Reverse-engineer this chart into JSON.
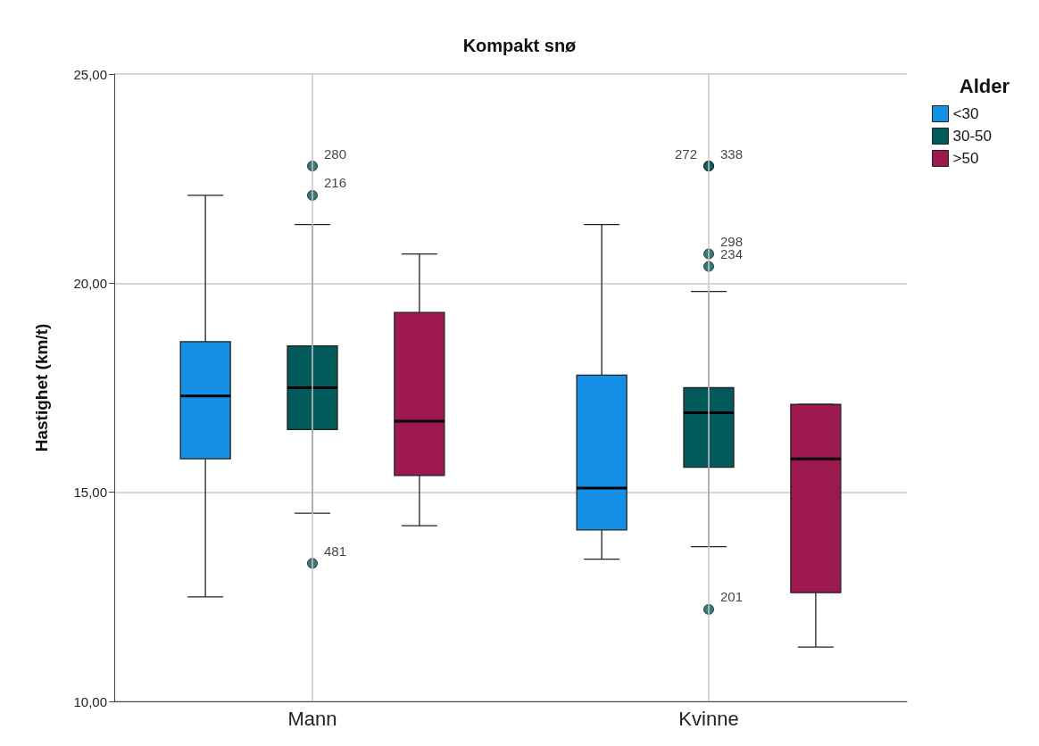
{
  "chart_data": {
    "type": "box",
    "title": "Kompakt snø",
    "ylabel": "Hastighet (km/t)",
    "legend_title": "Alder",
    "categories": [
      "Mann",
      "Kvinne"
    ],
    "series": [
      {
        "name": "<30",
        "color": "#1490e6",
        "boxes": [
          {
            "low": 12.5,
            "q1": 15.8,
            "median": 17.3,
            "q3": 18.6,
            "high": 22.1
          },
          {
            "low": 13.4,
            "q1": 14.1,
            "median": 15.1,
            "q3": 17.8,
            "high": 21.4
          }
        ]
      },
      {
        "name": "30-50",
        "color": "#035a5a",
        "boxes": [
          {
            "low": 14.5,
            "q1": 16.5,
            "median": 17.5,
            "q3": 18.5,
            "high": 21.4,
            "outliers": [
              22.8,
              22.1,
              13.3
            ]
          },
          {
            "low": 13.7,
            "q1": 15.6,
            "median": 16.9,
            "q3": 17.5,
            "high": 19.8,
            "outliers": [
              22.8,
              22.8,
              20.7,
              20.4,
              12.2
            ]
          }
        ]
      },
      {
        "name": ">50",
        "color": "#9c184f",
        "boxes": [
          {
            "low": 14.2,
            "q1": 15.4,
            "median": 16.7,
            "q3": 19.3,
            "high": 20.7
          },
          {
            "low": 11.3,
            "q1": 12.6,
            "median": 15.8,
            "q3": 17.1,
            "high": 17.1
          }
        ]
      }
    ],
    "annotations": [
      "280",
      "216",
      "481",
      "272",
      "338",
      "298",
      "234",
      "201"
    ],
    "ylim": [
      10,
      25
    ],
    "yticks": [
      {
        "value": 10,
        "label": "10,00"
      },
      {
        "value": 15,
        "label": "15,00"
      },
      {
        "value": 20,
        "label": "20,00"
      },
      {
        "value": 25,
        "label": "25,00"
      }
    ],
    "grid": true,
    "legend": "top right"
  }
}
